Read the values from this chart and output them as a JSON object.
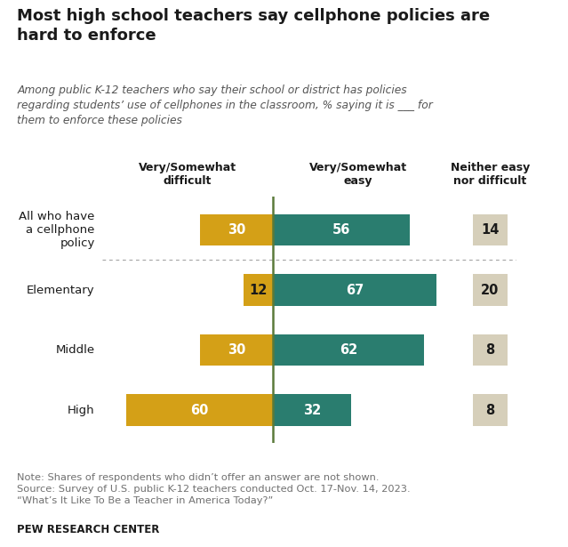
{
  "title": "Most high school teachers say cellphone policies are\nhard to enforce",
  "subtitle": "Among public K-12 teachers who say their school or district has policies\nregarding students’ use of cellphones in the classroom, % saying it is ___ for\nthem to enforce these policies",
  "categories": [
    "All who have\na cellphone\npolicy",
    "Elementary",
    "Middle",
    "High"
  ],
  "difficult": [
    30,
    12,
    30,
    60
  ],
  "easy": [
    56,
    67,
    62,
    32
  ],
  "neither": [
    14,
    20,
    8,
    8
  ],
  "difficult_color": "#D4A017",
  "easy_color": "#2A7D6F",
  "neither_color": "#D6CFBA",
  "divider_color": "#5A7A3A",
  "col_header_difficult": "Very/Somewhat\ndifficult",
  "col_header_easy": "Very/Somewhat\neasy",
  "col_header_neither": "Neither easy\nnor difficult",
  "note": "Note: Shares of respondents who didn’t offer an answer are not shown.\nSource: Survey of U.S. public K-12 teachers conducted Oct. 17-Nov. 14, 2023.\n“What’s It Like To Be a Teacher in America Today?”",
  "source_bold": "PEW RESEARCH CENTER",
  "bg_color": "#FFFFFF",
  "text_color": "#1a1a1a",
  "note_color": "#707070",
  "bar_height": 0.52,
  "xlim_left": -70,
  "xlim_right": 100
}
